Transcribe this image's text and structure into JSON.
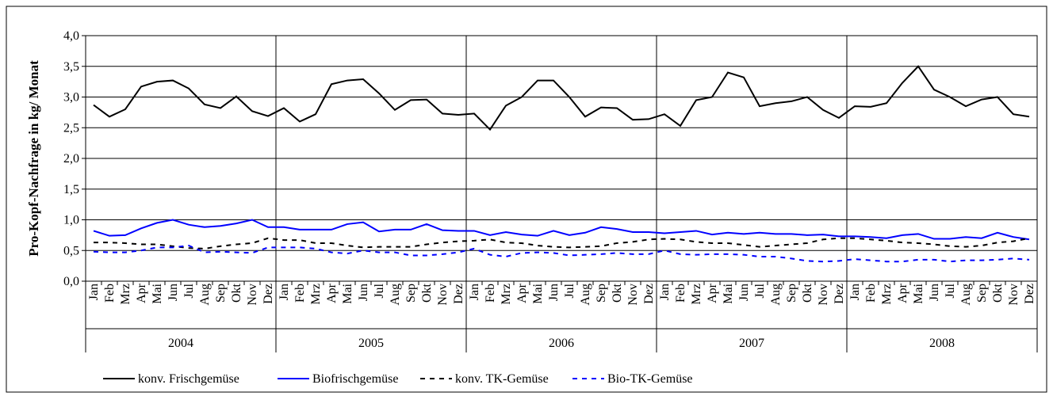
{
  "chart_data": {
    "type": "line",
    "y_label": "Pro-Kopf-Nachfrage in kg/ Monat",
    "categories": [
      "Jan",
      "Feb",
      "Mrz",
      "Apr",
      "Mai",
      "Jun",
      "Jul",
      "Aug",
      "Sep",
      "Okt",
      "Nov",
      "Dez",
      "Jan",
      "Feb",
      "Mrz",
      "Apr",
      "Mai",
      "Jun",
      "Jul",
      "Aug",
      "Sep",
      "Okt",
      "Nov",
      "Dez",
      "Jan",
      "Feb",
      "Mrz",
      "Apr",
      "Mai",
      "Jun",
      "Jul",
      "Aug",
      "Sep",
      "Okt",
      "Nov",
      "Dez",
      "Jan",
      "Feb",
      "Mrz",
      "Apr",
      "Mai",
      "Jun",
      "Jul",
      "Aug",
      "Sep",
      "Okt",
      "Nov",
      "Dez",
      "Jan",
      "Feb",
      "Mrz",
      "Apr",
      "Mai",
      "Jun",
      "Jul",
      "Aug",
      "Sep",
      "Okt",
      "Nov",
      "Dez"
    ],
    "category_groups": [
      "2004",
      "2005",
      "2006",
      "2007",
      "2008"
    ],
    "series": [
      {
        "name": "konv. Frischgemüse",
        "color": "#000000",
        "dashed": false,
        "values": [
          2.87,
          2.68,
          2.8,
          3.17,
          3.25,
          3.27,
          3.14,
          2.88,
          2.82,
          3.01,
          2.77,
          2.69,
          2.82,
          2.6,
          2.72,
          3.21,
          3.27,
          3.29,
          3.06,
          2.79,
          2.95,
          2.96,
          2.73,
          2.71,
          2.73,
          2.47,
          2.86,
          3.0,
          3.27,
          3.27,
          3.0,
          2.68,
          2.83,
          2.82,
          2.63,
          2.64,
          2.72,
          2.53,
          2.95,
          3.0,
          3.4,
          3.32,
          2.85,
          2.9,
          2.93,
          3.0,
          2.79,
          2.66,
          2.85,
          2.84,
          2.9,
          3.23,
          3.5,
          3.12,
          3.0,
          2.85,
          2.96,
          3.0,
          2.72,
          2.68
        ]
      },
      {
        "name": "Biofrischgemüse",
        "color": "#0000ff",
        "dashed": false,
        "values": [
          0.82,
          0.74,
          0.75,
          0.86,
          0.95,
          1.0,
          0.92,
          0.88,
          0.9,
          0.94,
          1.0,
          0.88,
          0.88,
          0.84,
          0.84,
          0.84,
          0.93,
          0.96,
          0.81,
          0.84,
          0.84,
          0.93,
          0.83,
          0.82,
          0.82,
          0.75,
          0.8,
          0.76,
          0.74,
          0.82,
          0.75,
          0.79,
          0.88,
          0.85,
          0.8,
          0.8,
          0.78,
          0.8,
          0.82,
          0.76,
          0.79,
          0.77,
          0.79,
          0.77,
          0.77,
          0.75,
          0.76,
          0.73,
          0.73,
          0.72,
          0.7,
          0.75,
          0.77,
          0.69,
          0.69,
          0.72,
          0.7,
          0.79,
          0.72,
          0.68
        ]
      },
      {
        "name": "konv. TK-Gemüse",
        "color": "#000000",
        "dashed": true,
        "values": [
          0.63,
          0.63,
          0.62,
          0.6,
          0.6,
          0.57,
          0.54,
          0.53,
          0.57,
          0.6,
          0.62,
          0.7,
          0.67,
          0.67,
          0.62,
          0.62,
          0.58,
          0.55,
          0.56,
          0.56,
          0.56,
          0.6,
          0.63,
          0.65,
          0.66,
          0.68,
          0.63,
          0.62,
          0.58,
          0.56,
          0.55,
          0.56,
          0.57,
          0.62,
          0.64,
          0.68,
          0.69,
          0.68,
          0.64,
          0.62,
          0.62,
          0.59,
          0.56,
          0.58,
          0.6,
          0.62,
          0.68,
          0.7,
          0.7,
          0.68,
          0.66,
          0.63,
          0.62,
          0.6,
          0.57,
          0.56,
          0.58,
          0.63,
          0.65,
          0.7
        ]
      },
      {
        "name": "Bio-TK-Gemüse",
        "color": "#0000ff",
        "dashed": true,
        "values": [
          0.48,
          0.47,
          0.47,
          0.5,
          0.55,
          0.55,
          0.58,
          0.47,
          0.48,
          0.47,
          0.46,
          0.55,
          0.55,
          0.55,
          0.53,
          0.47,
          0.45,
          0.5,
          0.47,
          0.47,
          0.42,
          0.42,
          0.44,
          0.47,
          0.53,
          0.43,
          0.4,
          0.46,
          0.47,
          0.46,
          0.42,
          0.43,
          0.44,
          0.46,
          0.44,
          0.44,
          0.5,
          0.44,
          0.43,
          0.44,
          0.44,
          0.43,
          0.4,
          0.4,
          0.37,
          0.33,
          0.32,
          0.33,
          0.36,
          0.34,
          0.32,
          0.32,
          0.35,
          0.35,
          0.32,
          0.34,
          0.34,
          0.35,
          0.37,
          0.35
        ]
      }
    ],
    "ylim": [
      0,
      4
    ],
    "yticks": [
      {
        "value": 0,
        "label": "0,0"
      },
      {
        "value": 0.5,
        "label": "0,5"
      },
      {
        "value": 1,
        "label": "1,0"
      },
      {
        "value": 1.5,
        "label": "1,5"
      },
      {
        "value": 2,
        "label": "2,0"
      },
      {
        "value": 2.5,
        "label": "2,5"
      },
      {
        "value": 3,
        "label": "3,0"
      },
      {
        "value": 3.5,
        "label": "3,5"
      },
      {
        "value": 4,
        "label": "4,0"
      }
    ],
    "grid": true,
    "legend": "bottom"
  }
}
